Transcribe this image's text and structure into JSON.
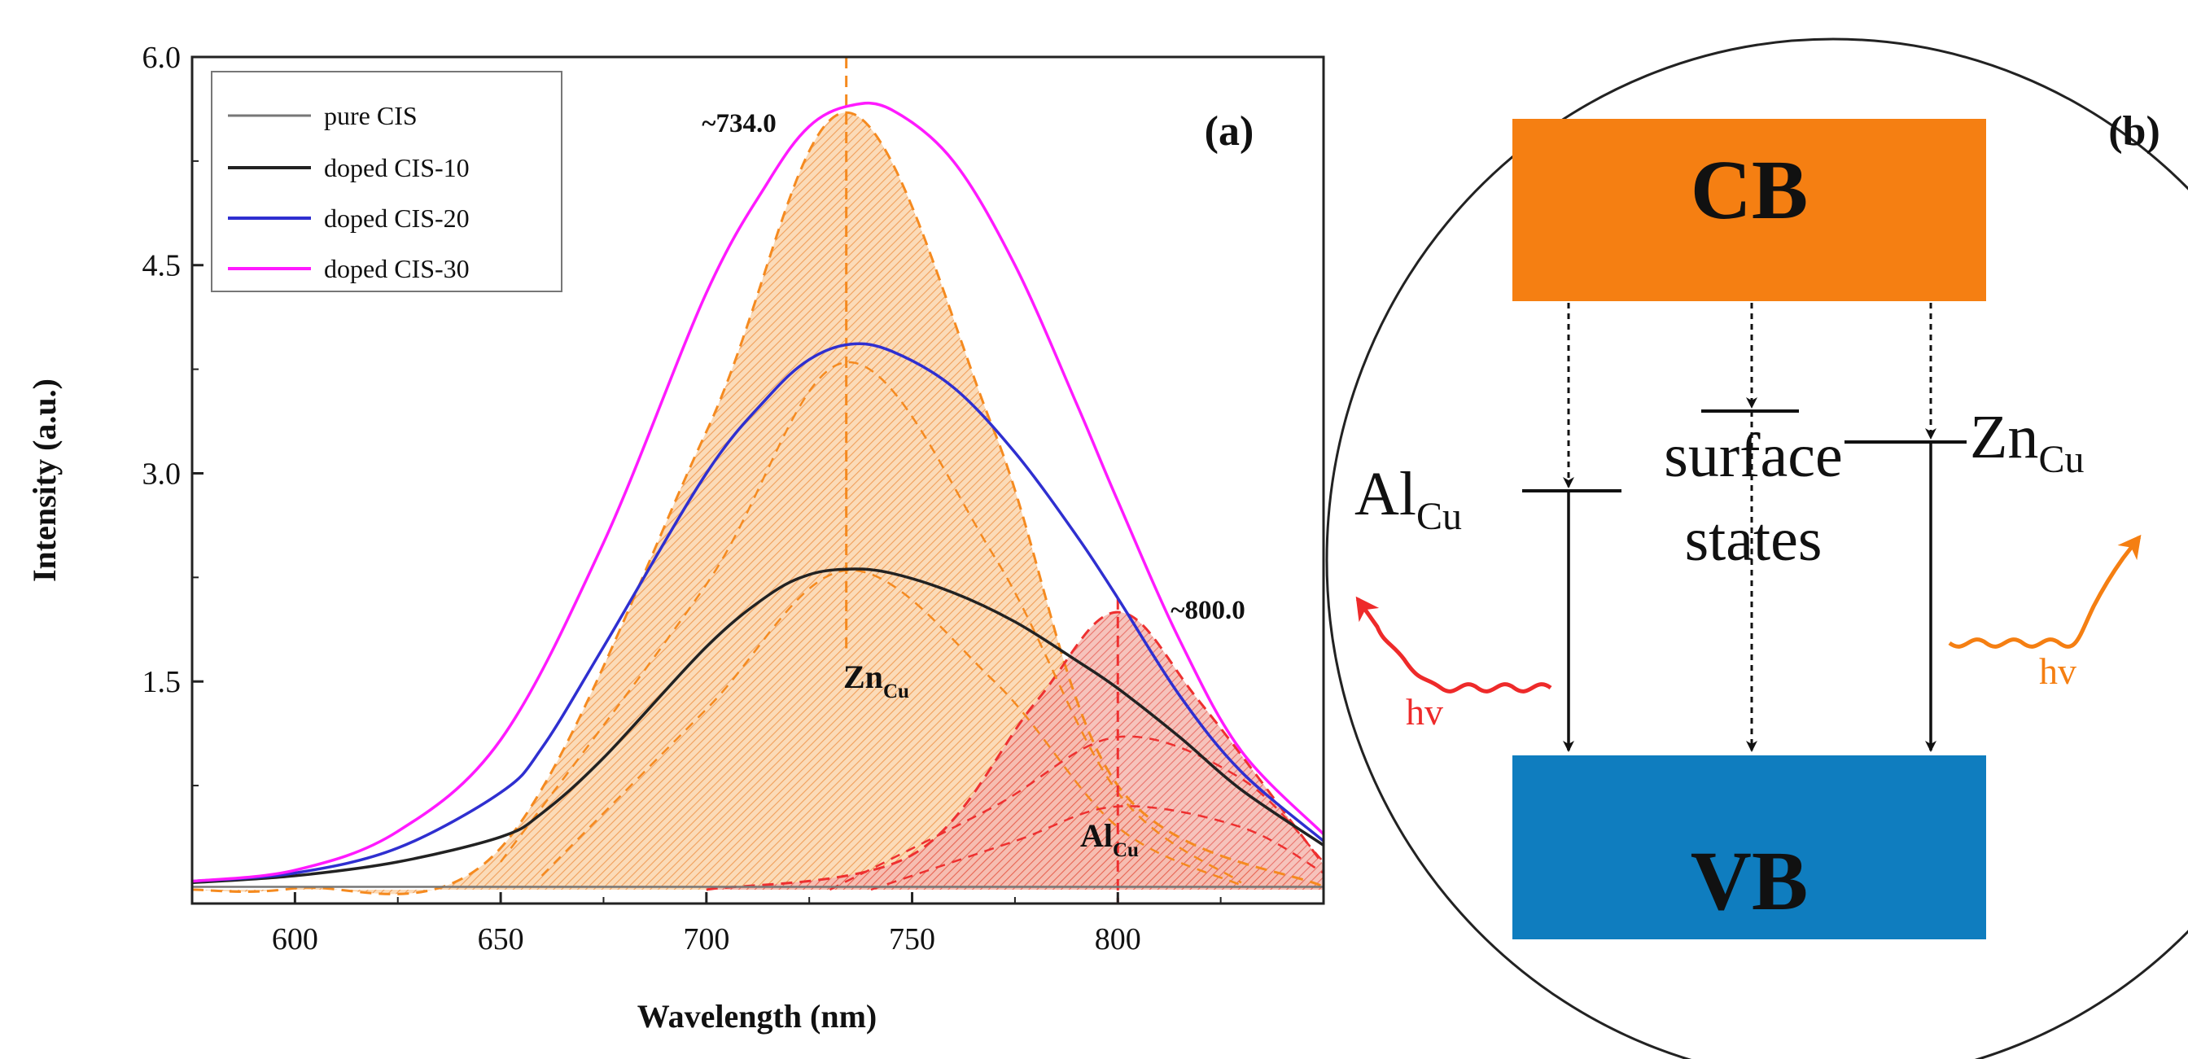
{
  "chart_data": {
    "type": "line",
    "panel_label": "(a)",
    "xlabel": "Wavelength (nm)",
    "ylabel": "Intensity (a.u.)",
    "xlim": [
      575,
      850
    ],
    "ylim": [
      -0.1,
      6.0
    ],
    "x_ticks": [
      600,
      650,
      700,
      750,
      800
    ],
    "y_ticks": [
      1.5,
      3.0,
      4.5,
      6.0
    ],
    "y_tick_labels": [
      "1.5",
      "3.0",
      "4.5",
      "6.0"
    ],
    "legend_position": "top-left",
    "series": [
      {
        "name": "pure CIS",
        "color": "#777777",
        "x": [
          575,
          600,
          650,
          700,
          750,
          800,
          850
        ],
        "y": [
          0.02,
          0.02,
          0.02,
          0.02,
          0.02,
          0.02,
          0.02
        ]
      },
      {
        "name": "doped CIS-10",
        "color": "#222222",
        "x": [
          575,
          600,
          625,
          650,
          660,
          675,
          700,
          715,
          725,
          735,
          745,
          760,
          775,
          790,
          800,
          815,
          830,
          850
        ],
        "y": [
          0.05,
          0.1,
          0.2,
          0.38,
          0.55,
          0.95,
          1.75,
          2.12,
          2.27,
          2.31,
          2.28,
          2.14,
          1.93,
          1.65,
          1.45,
          1.1,
          0.72,
          0.32
        ]
      },
      {
        "name": "doped CIS-20",
        "color": "#2f2fd0",
        "x": [
          575,
          600,
          625,
          650,
          660,
          675,
          700,
          715,
          725,
          735,
          745,
          760,
          775,
          790,
          800,
          815,
          830,
          850
        ],
        "y": [
          0.06,
          0.12,
          0.3,
          0.7,
          1.02,
          1.75,
          3.0,
          3.55,
          3.82,
          3.93,
          3.88,
          3.62,
          3.15,
          2.55,
          2.1,
          1.4,
          0.85,
          0.35
        ]
      },
      {
        "name": "doped CIS-30",
        "color": "#ff1aff",
        "x": [
          575,
          600,
          625,
          650,
          675,
          700,
          715,
          725,
          735,
          745,
          760,
          775,
          790,
          800,
          815,
          830,
          850
        ],
        "y": [
          0.06,
          0.14,
          0.42,
          1.08,
          2.5,
          4.3,
          5.1,
          5.5,
          5.65,
          5.62,
          5.25,
          4.5,
          3.5,
          2.8,
          1.8,
          1.0,
          0.4
        ]
      }
    ],
    "fitted_peaks": [
      {
        "annotation": "~734.0",
        "label_main": "Zn",
        "label_sub": "Cu",
        "center": 734.0,
        "color": "#f58a1f",
        "fill": "#f9c99a",
        "x": [
          575,
          600,
          650,
          700,
          734,
          770,
          800,
          850
        ],
        "y": [
          0,
          0.01,
          0.3,
          3.3,
          5.6,
          3.3,
          0.75,
          0.02
        ]
      },
      {
        "annotation": "~800.0",
        "label_main": "Al",
        "label_sub": "Cu",
        "center": 800.0,
        "color": "#ee3030",
        "fill": "#f2a3a3",
        "x": [
          700,
          750,
          780,
          800,
          820,
          850
        ],
        "y": [
          0,
          0.25,
          1.35,
          2.0,
          1.35,
          0.18
        ]
      }
    ]
  },
  "panel_b": {
    "panel_label": "(b)",
    "cb_label": "CB",
    "vb_label": "VB",
    "cb_color": "#f57f12",
    "vb_color": "#0f7dbf",
    "al_level": {
      "main": "Al",
      "sub": "Cu"
    },
    "surface_label_line1": "surface",
    "surface_label_line2": "states",
    "zn_level": {
      "main": "Zn",
      "sub": "Cu"
    },
    "emission_left": "hv",
    "emission_right": "hv",
    "emission_left_color": "#ee2a2a",
    "emission_right_color": "#f57f12"
  }
}
